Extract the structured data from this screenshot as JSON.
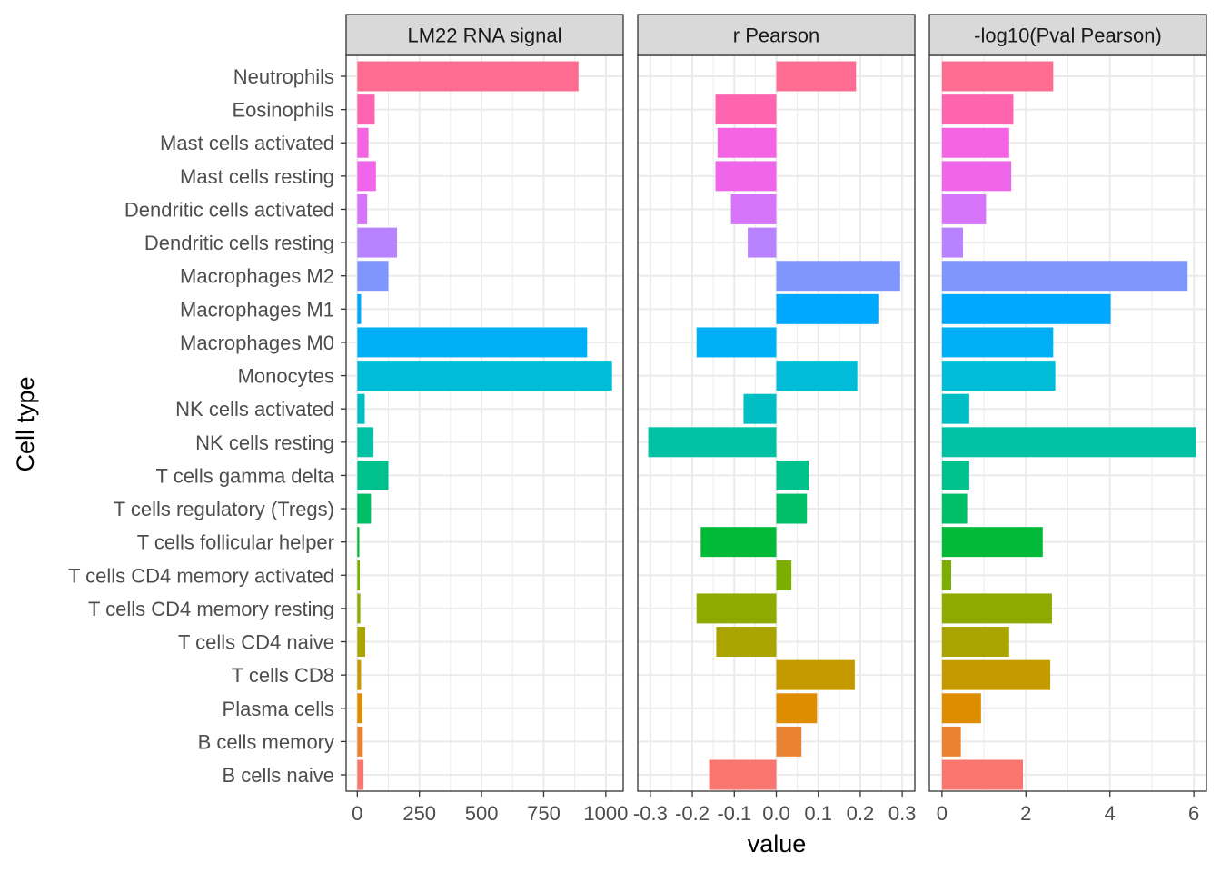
{
  "chart_data": {
    "type": "bar",
    "orientation": "horizontal",
    "xlabel": "value",
    "ylabel": "Cell type",
    "categories": [
      "Neutrophils",
      "Eosinophils",
      "Mast cells activated",
      "Mast cells resting",
      "Dendritic cells activated",
      "Dendritic cells resting",
      "Macrophages M2",
      "Macrophages M1",
      "Macrophages M0",
      "Monocytes",
      "NK cells activated",
      "NK cells resting",
      "T cells gamma delta",
      "T cells regulatory (Tregs)",
      "T cells follicular helper",
      "T cells CD4 memory activated",
      "T cells CD4 memory resting",
      "T cells CD4 naive",
      "T cells CD8",
      "Plasma cells",
      "B cells memory",
      "B cells naive"
    ],
    "colors": [
      "#FF6C91",
      "#FF64B0",
      "#F564E3",
      "#F066EA",
      "#D774FC",
      "#B983FF",
      "#7F96FF",
      "#00A9FF",
      "#00B0F6",
      "#00BCD8",
      "#00BFC4",
      "#00C1A3",
      "#00C08B",
      "#00BE67",
      "#00BA38",
      "#7CAE00",
      "#8FAA00",
      "#ABA300",
      "#C49A00",
      "#DE8C00",
      "#EA8331",
      "#F8766D"
    ],
    "panels": [
      {
        "title": "LM22 RNA signal",
        "xlim": [
          -45,
          1070
        ],
        "xticks": [
          0,
          250,
          500,
          750,
          1000
        ],
        "xtick_labels": [
          "0",
          "250",
          "500",
          "750",
          "1000"
        ],
        "values": [
          890,
          70,
          45,
          75,
          40,
          160,
          125,
          15,
          925,
          1025,
          30,
          65,
          125,
          55,
          8,
          10,
          12,
          32,
          15,
          20,
          22,
          25
        ]
      },
      {
        "title": "r Pearson",
        "xlim": [
          -0.33,
          0.33
        ],
        "xticks": [
          -0.3,
          -0.2,
          -0.1,
          0.0,
          0.1,
          0.2,
          0.3
        ],
        "xtick_labels": [
          "-0.3",
          "-0.2",
          "-0.1",
          "0.0",
          "0.1",
          "0.2",
          "0.3"
        ],
        "values": [
          0.19,
          -0.145,
          -0.14,
          -0.145,
          -0.108,
          -0.068,
          0.295,
          0.243,
          -0.19,
          0.193,
          -0.078,
          -0.305,
          0.077,
          0.073,
          -0.18,
          0.036,
          -0.19,
          -0.143,
          0.187,
          0.097,
          0.06,
          -0.16
        ]
      },
      {
        "title": "-log10(Pval Pearson)",
        "xlim": [
          -0.3,
          6.3
        ],
        "xticks": [
          0,
          2,
          4,
          6
        ],
        "xtick_labels": [
          "0",
          "2",
          "4",
          "6"
        ],
        "values": [
          2.65,
          1.7,
          1.6,
          1.65,
          1.05,
          0.5,
          5.85,
          4.02,
          2.65,
          2.7,
          0.65,
          6.05,
          0.65,
          0.6,
          2.4,
          0.22,
          2.62,
          1.6,
          2.58,
          0.93,
          0.45,
          1.93
        ]
      }
    ],
    "grid": true,
    "legend": "none"
  }
}
